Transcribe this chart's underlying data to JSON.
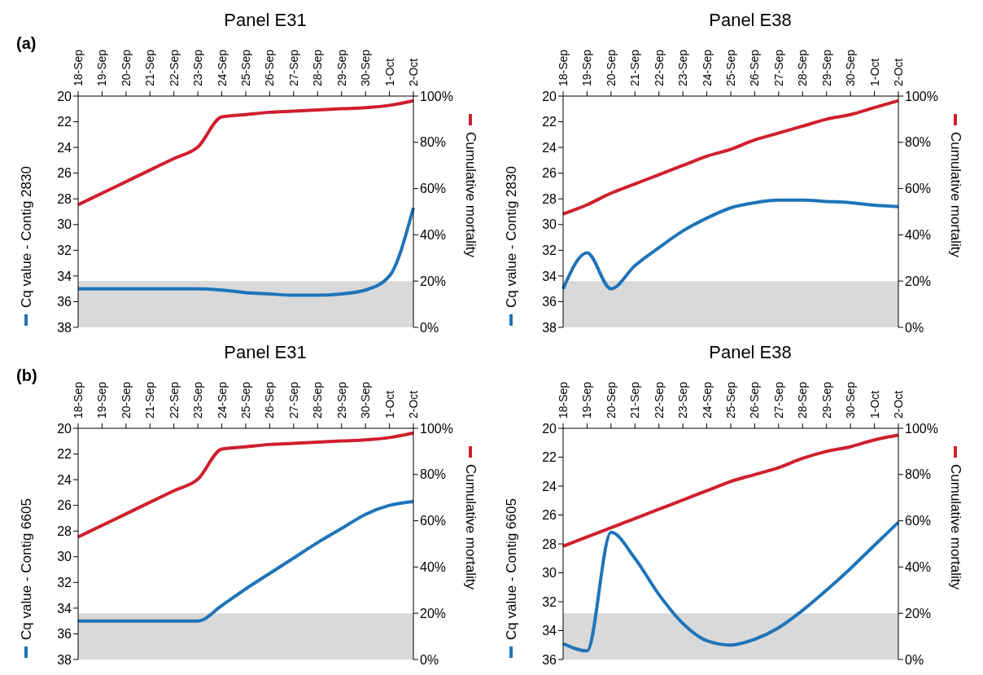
{
  "chart_data": [
    {
      "type": "line",
      "title": "Panel E31",
      "annotations": [
        "(a)"
      ],
      "categories": [
        "18-Sep",
        "19-Sep",
        "20-Sep",
        "21-Sep",
        "22-Sep",
        "23-Sep",
        "24-Sep",
        "25-Sep",
        "26-Sep",
        "27-Sep",
        "28-Sep",
        "29-Sep",
        "30-Sep",
        "1-Oct",
        "2-Oct"
      ],
      "ylabel": "Cq value - Contig 2830",
      "y2label": "Cumulative mortality",
      "ylim": [
        38,
        20
      ],
      "yticks": [
        20,
        22,
        24,
        26,
        28,
        30,
        32,
        34,
        36,
        38
      ],
      "y2lim": [
        0,
        100
      ],
      "y2ticks": [
        {
          "value": 0,
          "label": "0%"
        },
        {
          "value": 20,
          "label": "20%"
        },
        {
          "value": 40,
          "label": "40%"
        },
        {
          "value": 60,
          "label": "60%"
        },
        {
          "value": 80,
          "label": "80%"
        },
        {
          "value": 100,
          "label": "100%"
        }
      ],
      "series": [
        {
          "color": "#1f74b8",
          "values": [
            35,
            35,
            35,
            35,
            35,
            35,
            35.1,
            35.3,
            35.4,
            35.5,
            35.5,
            35.4,
            35.1,
            34,
            28.7
          ]
        },
        {
          "color": "#d01f2e",
          "axis": "y2",
          "values": [
            53,
            58,
            63,
            68,
            73,
            78,
            91,
            92,
            93,
            93.5,
            94,
            94.5,
            95,
            96,
            98
          ]
        }
      ],
      "bands": [
        {
          "axis": "y",
          "from": 34.4,
          "to": 38,
          "color": "#d9d9d9"
        }
      ]
    },
    {
      "type": "line",
      "title": "Panel E38",
      "categories": [
        "18-Sep",
        "19-Sep",
        "20-Sep",
        "21-Sep",
        "22-Sep",
        "23-Sep",
        "24-Sep",
        "25-Sep",
        "26-Sep",
        "27-Sep",
        "28-Sep",
        "29-Sep",
        "30-Sep",
        "1-Oct",
        "2-Oct"
      ],
      "ylabel": "Cq value - Contig 2830",
      "y2label": "Cumulative mortality",
      "ylim": [
        38,
        20
      ],
      "yticks": [
        20,
        22,
        24,
        26,
        28,
        30,
        32,
        34,
        36,
        38
      ],
      "y2lim": [
        0,
        100
      ],
      "y2ticks": [
        {
          "value": 0,
          "label": "0%"
        },
        {
          "value": 20,
          "label": "20%"
        },
        {
          "value": 40,
          "label": "40%"
        },
        {
          "value": 60,
          "label": "60%"
        },
        {
          "value": 80,
          "label": "80%"
        },
        {
          "value": 100,
          "label": "100%"
        }
      ],
      "series": [
        {
          "color": "#1f74b8",
          "values": [
            35,
            32.2,
            35,
            33.2,
            31.8,
            30.5,
            29.5,
            28.7,
            28.3,
            28.1,
            28.1,
            28.2,
            28.3,
            28.5,
            28.6
          ]
        },
        {
          "color": "#d01f2e",
          "axis": "y2",
          "values": [
            49,
            53,
            58,
            62,
            66,
            70,
            74,
            77,
            81,
            84,
            87,
            90,
            92,
            95,
            98
          ]
        }
      ],
      "bands": [
        {
          "axis": "y",
          "from": 34.4,
          "to": 38,
          "color": "#d9d9d9"
        }
      ]
    },
    {
      "type": "line",
      "title": "Panel E31",
      "annotations": [
        "(b)"
      ],
      "categories": [
        "18-Sep",
        "19-Sep",
        "20-Sep",
        "21-Sep",
        "22-Sep",
        "23-Sep",
        "24-Sep",
        "25-Sep",
        "26-Sep",
        "27-Sep",
        "28-Sep",
        "29-Sep",
        "30-Sep",
        "1-Oct",
        "2-Oct"
      ],
      "ylabel": "Cq value - Contig 6605",
      "y2label": "Cumulative mortality",
      "ylim": [
        38,
        20
      ],
      "yticks": [
        20,
        22,
        24,
        26,
        28,
        30,
        32,
        34,
        36,
        38
      ],
      "y2lim": [
        0,
        100
      ],
      "y2ticks": [
        {
          "value": 0,
          "label": "0%"
        },
        {
          "value": 20,
          "label": "20%"
        },
        {
          "value": 40,
          "label": "40%"
        },
        {
          "value": 60,
          "label": "60%"
        },
        {
          "value": 80,
          "label": "80%"
        },
        {
          "value": 100,
          "label": "100%"
        }
      ],
      "series": [
        {
          "color": "#1f74b8",
          "values": [
            35,
            35,
            35,
            35,
            35,
            35,
            33.8,
            32.5,
            31.3,
            30.1,
            28.9,
            27.8,
            26.7,
            26,
            25.7
          ]
        },
        {
          "color": "#d01f2e",
          "axis": "y2",
          "values": [
            53,
            58,
            63,
            68,
            73,
            78,
            91,
            92,
            93,
            93.5,
            94,
            94.5,
            95,
            96,
            98
          ]
        }
      ],
      "bands": [
        {
          "axis": "y",
          "from": 34.4,
          "to": 38,
          "color": "#d9d9d9"
        }
      ]
    },
    {
      "type": "line",
      "title": "Panel E38",
      "categories": [
        "18-Sep",
        "19-Sep",
        "20-Sep",
        "21-Sep",
        "22-Sep",
        "23-Sep",
        "24-Sep",
        "25-Sep",
        "26-Sep",
        "27-Sep",
        "28-Sep",
        "29-Sep",
        "30-Sep",
        "1-Oct",
        "2-Oct"
      ],
      "ylabel": "Cq value - Contig 6605",
      "y2label": "Cumulative mortality",
      "ylim": [
        36,
        20
      ],
      "yticks": [
        20,
        22,
        24,
        26,
        28,
        30,
        32,
        34,
        36
      ],
      "y2lim": [
        0,
        100
      ],
      "y2ticks": [
        {
          "value": 0,
          "label": "0%"
        },
        {
          "value": 20,
          "label": "20%"
        },
        {
          "value": 40,
          "label": "40%"
        },
        {
          "value": 60,
          "label": "60%"
        },
        {
          "value": 80,
          "label": "80%"
        },
        {
          "value": 100,
          "label": "100%"
        }
      ],
      "series": [
        {
          "color": "#1f74b8",
          "values": [
            34.9,
            35.4,
            27.2,
            29,
            31.5,
            33.5,
            34.7,
            35,
            34.6,
            33.8,
            32.6,
            31.2,
            29.7,
            28.1,
            26.5
          ]
        },
        {
          "color": "#d01f2e",
          "axis": "y2",
          "values": [
            49,
            53,
            57,
            61,
            65,
            69,
            73,
            77,
            80,
            83,
            87,
            90,
            92,
            95,
            97
          ]
        }
      ],
      "bands": [
        {
          "axis": "y",
          "from": 32.8,
          "to": 36,
          "color": "#d9d9d9"
        }
      ]
    }
  ]
}
